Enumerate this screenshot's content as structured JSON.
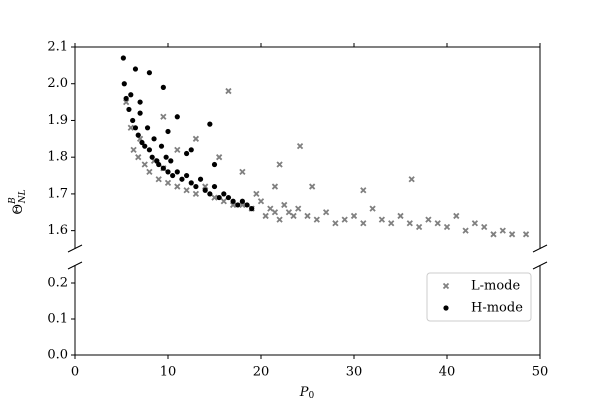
{
  "chart_data": {
    "type": "scatter",
    "x_label": {
      "base": "P",
      "sub": "0"
    },
    "y_label": {
      "base": "Θ",
      "sup": "B",
      "sub": "NL"
    },
    "xlim": [
      0,
      50
    ],
    "xticks": [
      0,
      10,
      20,
      30,
      40,
      50
    ],
    "y_segments": [
      {
        "ylim": [
          1.55,
          2.1
        ],
        "yticks": [
          1.6,
          1.7,
          1.8,
          1.9,
          2.0,
          2.1
        ]
      },
      {
        "ylim": [
          0,
          0.25
        ],
        "yticks": [
          0.0,
          0.1,
          0.2
        ]
      }
    ],
    "legend": "lower right",
    "series": [
      {
        "name": "L-mode",
        "color": "#808080",
        "marker": "x",
        "x": [
          5.5,
          6,
          6.3,
          6.8,
          7,
          7.5,
          8,
          8.5,
          9,
          9.5,
          10,
          11,
          12,
          13,
          14,
          15,
          16,
          17,
          18,
          19,
          19.5,
          20,
          20.5,
          21,
          21.5,
          22,
          22.5,
          23,
          23.5,
          24,
          25,
          26,
          27,
          28,
          29,
          30,
          31,
          32,
          33,
          34,
          35,
          36,
          37,
          38,
          39,
          40,
          41,
          42,
          43,
          44,
          45,
          46,
          47,
          48.5,
          16.5,
          24.2,
          36.2,
          31,
          22,
          21.5,
          9.5,
          13,
          15.5,
          18,
          25.5,
          11
        ],
        "values": [
          1.95,
          1.88,
          1.82,
          1.8,
          1.85,
          1.78,
          1.76,
          1.79,
          1.74,
          1.77,
          1.73,
          1.72,
          1.71,
          1.7,
          1.72,
          1.69,
          1.68,
          1.67,
          1.67,
          1.66,
          1.7,
          1.68,
          1.64,
          1.66,
          1.65,
          1.63,
          1.67,
          1.65,
          1.64,
          1.66,
          1.64,
          1.63,
          1.65,
          1.62,
          1.63,
          1.64,
          1.62,
          1.66,
          1.63,
          1.62,
          1.64,
          1.62,
          1.61,
          1.63,
          1.62,
          1.61,
          1.64,
          1.6,
          1.62,
          1.61,
          1.59,
          1.6,
          1.59,
          1.59,
          1.98,
          1.83,
          1.74,
          1.71,
          1.78,
          1.72,
          1.91,
          1.85,
          1.8,
          1.76,
          1.72,
          1.82
        ]
      },
      {
        "name": "H-mode",
        "color": "#000000",
        "marker": "o",
        "x": [
          5.2,
          5.3,
          5.5,
          5.8,
          6,
          6.2,
          6.5,
          6.8,
          7,
          7.2,
          7.5,
          7.8,
          8,
          8.3,
          8.5,
          8.8,
          9,
          9.3,
          9.5,
          9.8,
          10,
          10.3,
          10.5,
          11,
          11.5,
          12,
          12.5,
          13,
          13.5,
          14,
          14.5,
          15,
          15.5,
          16,
          16.5,
          17,
          17.5,
          18,
          18.5,
          19,
          8,
          9.5,
          11,
          12.5,
          14.5,
          15,
          7,
          6.5,
          10,
          12
        ],
        "values": [
          2.07,
          2.0,
          1.96,
          1.93,
          1.97,
          1.9,
          1.88,
          1.86,
          1.92,
          1.84,
          1.83,
          1.88,
          1.82,
          1.8,
          1.85,
          1.79,
          1.78,
          1.83,
          1.77,
          1.8,
          1.76,
          1.79,
          1.75,
          1.76,
          1.74,
          1.75,
          1.73,
          1.72,
          1.74,
          1.71,
          1.7,
          1.72,
          1.69,
          1.7,
          1.69,
          1.68,
          1.67,
          1.68,
          1.67,
          1.66,
          2.03,
          1.99,
          1.91,
          1.82,
          1.89,
          1.78,
          1.95,
          2.04,
          1.87,
          1.81
        ]
      }
    ]
  }
}
